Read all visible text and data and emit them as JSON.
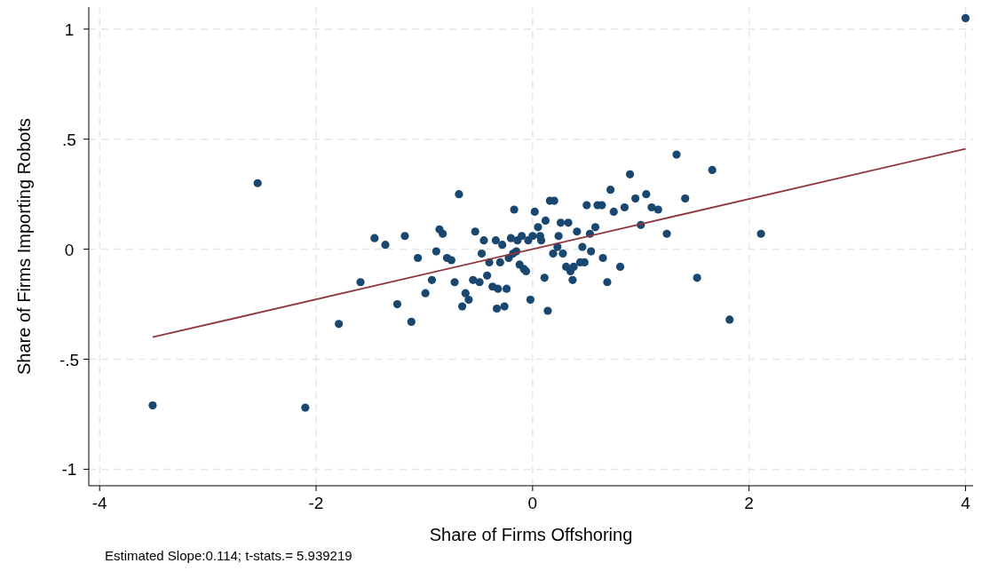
{
  "chart_data": {
    "type": "scatter",
    "xlabel": "Share of Firms Offshoring",
    "ylabel": "Share of Firms Importing Robots",
    "annotations": [
      "Estimated Slope:0.114; t-stats.= 5.939219"
    ],
    "xlim": [
      -4.1,
      4.07
    ],
    "ylim": [
      -1.075,
      1.1
    ],
    "xticks": [
      -4,
      -2,
      0,
      2,
      4
    ],
    "yticks": [
      {
        "value": -1,
        "label": "-1"
      },
      {
        "value": -0.5,
        "label": "-.5"
      },
      {
        "value": 0,
        "label": "0"
      },
      {
        "value": 0.5,
        "label": ".5"
      },
      {
        "value": 1,
        "label": "1"
      }
    ],
    "grid": true,
    "series": [
      {
        "marker": "circle",
        "color": "#1a476f",
        "x": [
          -3.51,
          -2.54,
          -2.1,
          -1.79,
          -1.59,
          -1.46,
          -1.36,
          -1.25,
          -1.18,
          -1.12,
          -1.06,
          -0.99,
          -0.93,
          -0.89,
          -0.86,
          -0.83,
          -0.79,
          -0.75,
          -0.72,
          -0.68,
          -0.65,
          -0.62,
          -0.59,
          -0.55,
          -0.53,
          -0.49,
          -0.47,
          -0.45,
          -0.42,
          -0.4,
          -0.37,
          -0.34,
          -0.33,
          -0.32,
          -0.3,
          -0.28,
          -0.26,
          -0.24,
          -0.22,
          -0.2,
          -0.18,
          -0.17,
          -0.15,
          -0.14,
          -0.12,
          -0.1,
          -0.08,
          -0.06,
          -0.04,
          -0.02,
          0,
          0.02,
          0.05,
          0.07,
          0.08,
          0.11,
          0.12,
          0.14,
          0.16,
          0.2,
          0.19,
          0.23,
          0.24,
          0.26,
          0.28,
          0.31,
          0.33,
          0.35,
          0.37,
          0.38,
          0.41,
          0.44,
          0.46,
          0.48,
          0.5,
          0.53,
          0.54,
          0.58,
          0.6,
          0.64,
          0.65,
          0.69,
          0.72,
          0.75,
          0.81,
          0.85,
          0.9,
          0.95,
          1.0,
          1.05,
          1.1,
          1.16,
          1.24,
          1.33,
          1.41,
          1.52,
          1.66,
          1.82,
          2.11,
          4.0
        ],
        "values": [
          -0.71,
          0.3,
          -0.72,
          -0.34,
          -0.15,
          0.05,
          0.02,
          -0.25,
          0.06,
          -0.33,
          -0.04,
          -0.2,
          -0.14,
          -0.01,
          0.09,
          0.07,
          -0.04,
          -0.05,
          -0.15,
          0.25,
          -0.26,
          -0.2,
          -0.23,
          -0.14,
          0.08,
          -0.15,
          -0.02,
          0.04,
          -0.12,
          -0.06,
          -0.17,
          0.04,
          -0.27,
          -0.18,
          -0.06,
          0.02,
          -0.26,
          -0.18,
          -0.04,
          0.05,
          -0.02,
          0.18,
          -0.01,
          0.04,
          -0.07,
          0.06,
          -0.09,
          -0.1,
          0.04,
          -0.23,
          0.06,
          0.17,
          0.1,
          0.06,
          0.04,
          -0.13,
          0.13,
          -0.28,
          0.22,
          0.22,
          -0.02,
          0.01,
          0.06,
          0.12,
          -0.02,
          -0.08,
          0.12,
          -0.1,
          -0.14,
          -0.08,
          0.08,
          -0.06,
          0.01,
          -0.06,
          0.2,
          0.07,
          -0.01,
          0.1,
          0.2,
          0.2,
          -0.04,
          -0.15,
          0.27,
          0.17,
          -0.08,
          0.19,
          0.34,
          0.23,
          0.11,
          0.25,
          0.19,
          0.18,
          0.07,
          0.43,
          0.23,
          -0.13,
          0.36,
          -0.32,
          0.07,
          1.05
        ]
      },
      {
        "type": "line",
        "color": "#90353b",
        "x": [
          -3.51,
          4.0
        ],
        "values": [
          -0.4,
          0.456
        ]
      }
    ]
  }
}
